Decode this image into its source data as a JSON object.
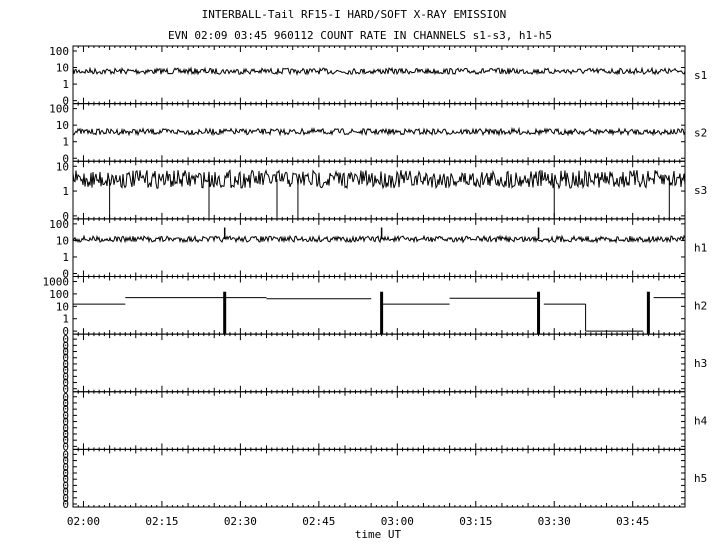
{
  "chart_data": {
    "type": "line",
    "title": "INTERBALL-Tail RF15-I HARD/SOFT X-RAY EMISSION",
    "subtitle": "EVN 02:09 03:45 960112  COUNT RATE IN CHANNELS s1-s3, h1-h5",
    "xlabel": "time UT",
    "x_ticks": [
      "02:00",
      "02:15",
      "02:30",
      "02:45",
      "03:00",
      "03:15",
      "03:30",
      "03:45"
    ],
    "x_range": [
      "01:58",
      "03:55"
    ],
    "y_scale": "log",
    "panels": [
      {
        "name": "s1",
        "y_ticks": [
          "100",
          "10",
          "1",
          "0"
        ],
        "baseline": 6,
        "segments": [
          {
            "from": "01:58",
            "to": "03:55",
            "value": 6,
            "noisy": true
          }
        ],
        "drops_to_zero": [],
        "spikes": []
      },
      {
        "name": "s2",
        "y_ticks": [
          "100",
          "10",
          "1",
          "0"
        ],
        "baseline": 4,
        "segments": [
          {
            "from": "01:58",
            "to": "03:55",
            "value": 4,
            "noisy": true
          }
        ],
        "drops_to_zero": [],
        "spikes": []
      },
      {
        "name": "s3",
        "y_ticks": [
          "10",
          "1",
          "0"
        ],
        "baseline": 3,
        "segments": [
          {
            "from": "01:58",
            "to": "03:55",
            "value": 3,
            "noisy": true
          }
        ],
        "drops_to_zero": [
          "02:05",
          "02:24",
          "02:37",
          "02:41",
          "03:30",
          "03:52"
        ],
        "spikes": []
      },
      {
        "name": "h1",
        "y_ticks": [
          "100",
          "10",
          "1",
          "0"
        ],
        "baseline": 12,
        "segments": [
          {
            "from": "01:58",
            "to": "03:55",
            "value": 12,
            "noisy": true
          }
        ],
        "drops_to_zero": [],
        "spikes": [
          "02:27",
          "02:57",
          "03:27"
        ]
      },
      {
        "name": "h2",
        "y_ticks": [
          "1000",
          "100",
          "10",
          "1",
          "0"
        ],
        "baseline": 0,
        "segments": [
          {
            "from": "01:58",
            "to": "02:08",
            "value": 15
          },
          {
            "from": "02:08",
            "to": "02:35",
            "value": 50
          },
          {
            "from": "02:35",
            "to": "02:55",
            "value": 40
          },
          {
            "from": "02:57",
            "to": "03:10",
            "value": 15
          },
          {
            "from": "03:10",
            "to": "03:27",
            "value": 45
          },
          {
            "from": "03:28",
            "to": "03:36",
            "value": 15
          },
          {
            "from": "03:36",
            "to": "03:47",
            "value": 0
          },
          {
            "from": "03:49",
            "to": "03:55",
            "value": 50
          }
        ],
        "bursts": [
          "02:27",
          "02:57",
          "03:27",
          "03:48"
        ]
      },
      {
        "name": "h3",
        "y_ticks": [
          "0",
          "0",
          "0",
          "0",
          "0",
          "0",
          "0",
          "0",
          "0"
        ],
        "segments": []
      },
      {
        "name": "h4",
        "y_ticks": [
          "0",
          "0",
          "0",
          "0",
          "0",
          "0",
          "0",
          "0",
          "0"
        ],
        "segments": []
      },
      {
        "name": "h5",
        "y_ticks": [
          "0",
          "0",
          "0",
          "0",
          "0",
          "0",
          "0",
          "0",
          "0"
        ],
        "segments": []
      }
    ],
    "grid": false,
    "legend": "none"
  }
}
